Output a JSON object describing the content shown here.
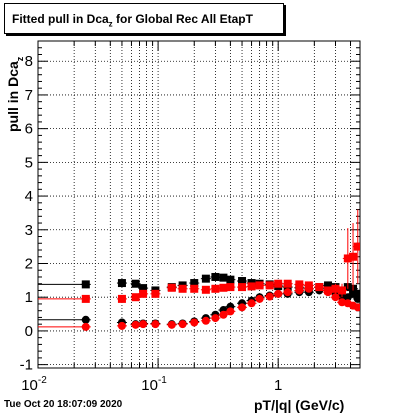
{
  "title": {
    "prefix": "Fitted pull in Dca",
    "sub": "z",
    "suffix": " for Global Rec All EtapT"
  },
  "footer": {
    "date": "Tue Oct 20 18:07:09 2020"
  },
  "chart_data": {
    "type": "scatter",
    "title": "Fitted pull in Dca_z for Global Rec All EtapT",
    "xlabel": "pT/|q| (GeV/c)",
    "ylabel": "pull in Dca_z",
    "xscale": "log",
    "xlim": [
      0.01,
      4.8
    ],
    "ylim": [
      -1.1,
      8.6
    ],
    "grid": true,
    "x_tick_labels": [
      {
        "value": 0.01,
        "base": "10",
        "exp": "-2"
      },
      {
        "value": 0.1,
        "base": "10",
        "exp": "-1"
      },
      {
        "value": 1,
        "base": "1",
        "exp": ""
      }
    ],
    "y_tick_labels": [
      "-1",
      "0",
      "1",
      "2",
      "3",
      "4",
      "5",
      "6",
      "7",
      "8"
    ],
    "series": [
      {
        "color": "#000000",
        "marker": "square",
        "x": [
          0.025,
          0.05,
          0.065,
          0.075,
          0.095,
          0.13,
          0.16,
          0.2,
          0.25,
          0.3,
          0.35,
          0.4,
          0.5,
          0.6,
          0.7,
          0.85,
          1.0,
          1.2,
          1.5,
          1.8,
          2.2,
          2.6,
          3.0,
          3.4,
          3.8,
          4.2,
          4.6
        ],
        "y": [
          1.38,
          1.42,
          1.4,
          1.27,
          1.2,
          1.3,
          1.35,
          1.42,
          1.55,
          1.6,
          1.58,
          1.52,
          1.48,
          1.42,
          1.4,
          1.38,
          1.33,
          1.3,
          1.28,
          1.25,
          1.3,
          1.35,
          1.3,
          1.2,
          1.3,
          1.25,
          1.1
        ]
      },
      {
        "color": "#000000",
        "marker": "circle",
        "x": [
          0.025,
          0.05,
          0.065,
          0.075,
          0.095,
          0.13,
          0.16,
          0.2,
          0.25,
          0.3,
          0.35,
          0.4,
          0.5,
          0.6,
          0.7,
          0.85,
          1.0,
          1.2,
          1.5,
          1.8,
          2.2,
          2.6,
          3.0,
          3.4,
          3.8,
          4.2,
          4.6
        ],
        "y": [
          0.33,
          0.25,
          0.2,
          0.22,
          0.22,
          0.2,
          0.22,
          0.28,
          0.38,
          0.48,
          0.62,
          0.72,
          0.82,
          0.9,
          1.0,
          1.05,
          1.1,
          1.1,
          1.15,
          1.15,
          1.2,
          1.25,
          1.1,
          1.0,
          1.0,
          1.1,
          0.95
        ]
      },
      {
        "color": "#ff0000",
        "marker": "square",
        "x": [
          0.025,
          0.05,
          0.065,
          0.075,
          0.095,
          0.13,
          0.16,
          0.2,
          0.25,
          0.3,
          0.35,
          0.4,
          0.5,
          0.6,
          0.7,
          0.85,
          1.0,
          1.2,
          1.5,
          1.8,
          2.2,
          2.6,
          3.0,
          3.4,
          3.8,
          4.2,
          4.6
        ],
        "y": [
          0.95,
          0.95,
          1.0,
          1.1,
          1.1,
          1.28,
          1.25,
          1.25,
          1.22,
          1.25,
          1.28,
          1.3,
          1.3,
          1.32,
          1.35,
          1.35,
          1.4,
          1.4,
          1.38,
          1.35,
          1.3,
          1.2,
          1.25,
          1.2,
          2.15,
          2.2,
          2.5
        ]
      },
      {
        "color": "#ff0000",
        "marker": "circle",
        "x": [
          0.025,
          0.05,
          0.065,
          0.075,
          0.095,
          0.13,
          0.16,
          0.2,
          0.25,
          0.3,
          0.35,
          0.4,
          0.5,
          0.6,
          0.7,
          0.85,
          1.0,
          1.2,
          1.5,
          1.8,
          2.2,
          2.6,
          3.0,
          3.4,
          3.8,
          4.2,
          4.6
        ],
        "y": [
          0.12,
          0.15,
          0.18,
          0.2,
          0.2,
          0.18,
          0.2,
          0.25,
          0.3,
          0.38,
          0.48,
          0.58,
          0.7,
          0.82,
          0.95,
          1.02,
          1.1,
          1.15,
          1.2,
          1.25,
          1.3,
          1.15,
          1.0,
          0.85,
          0.82,
          0.75,
          0.7
        ]
      }
    ],
    "error_bar_series": 2,
    "error_bars": [
      0.05,
      0.05,
      0.05,
      0.05,
      0.05,
      0.05,
      0.05,
      0.05,
      0.05,
      0.05,
      0.05,
      0.05,
      0.05,
      0.05,
      0.05,
      0.05,
      0.05,
      0.05,
      0.05,
      0.06,
      0.08,
      0.1,
      0.15,
      0.2,
      0.9,
      1.0,
      1.1
    ]
  }
}
